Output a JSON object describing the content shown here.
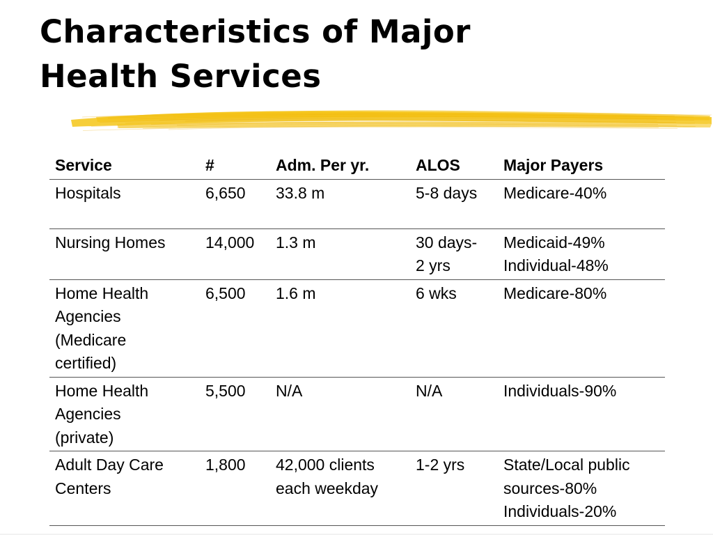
{
  "title": {
    "line1": "Characteristics of Major",
    "line2": "Health Services"
  },
  "colors": {
    "brush_stroke": "#f5c518",
    "text": "#000000",
    "rule": "#555555"
  },
  "table": {
    "headers": [
      "Service",
      "#",
      "Adm. Per yr.",
      "ALOS",
      "Major Payers"
    ],
    "rows": [
      {
        "service": [
          "Hospitals"
        ],
        "number": [
          "6,650"
        ],
        "admissions": [
          "33.8 m"
        ],
        "alos": [
          "5-8 days"
        ],
        "payers": [
          "Medicare-40%"
        ]
      },
      {
        "service": [
          "Nursing Homes"
        ],
        "number": [
          "14,000"
        ],
        "admissions": [
          "1.3 m"
        ],
        "alos": [
          "30 days-",
          "2 yrs"
        ],
        "payers": [
          "Medicaid-49%",
          "Individual-48%"
        ]
      },
      {
        "service": [
          "Home Health",
          "Agencies",
          "(Medicare",
          "certified)"
        ],
        "number": [
          "6,500"
        ],
        "admissions": [
          "1.6 m"
        ],
        "alos": [
          "6 wks"
        ],
        "payers": [
          "Medicare-80%"
        ]
      },
      {
        "service": [
          "Home Health",
          "Agencies",
          "(private)"
        ],
        "number": [
          "5,500"
        ],
        "admissions": [
          "N/A"
        ],
        "alos": [
          "N/A"
        ],
        "payers": [
          "Individuals-90%"
        ]
      },
      {
        "service": [
          "Adult Day Care",
          "Centers"
        ],
        "number": [
          "1,800"
        ],
        "admissions": [
          "42,000 clients",
          "each weekday"
        ],
        "alos": [
          "1-2 yrs"
        ],
        "payers": [
          "State/Local public",
          "sources-80%",
          "Individuals-20%"
        ]
      }
    ]
  }
}
